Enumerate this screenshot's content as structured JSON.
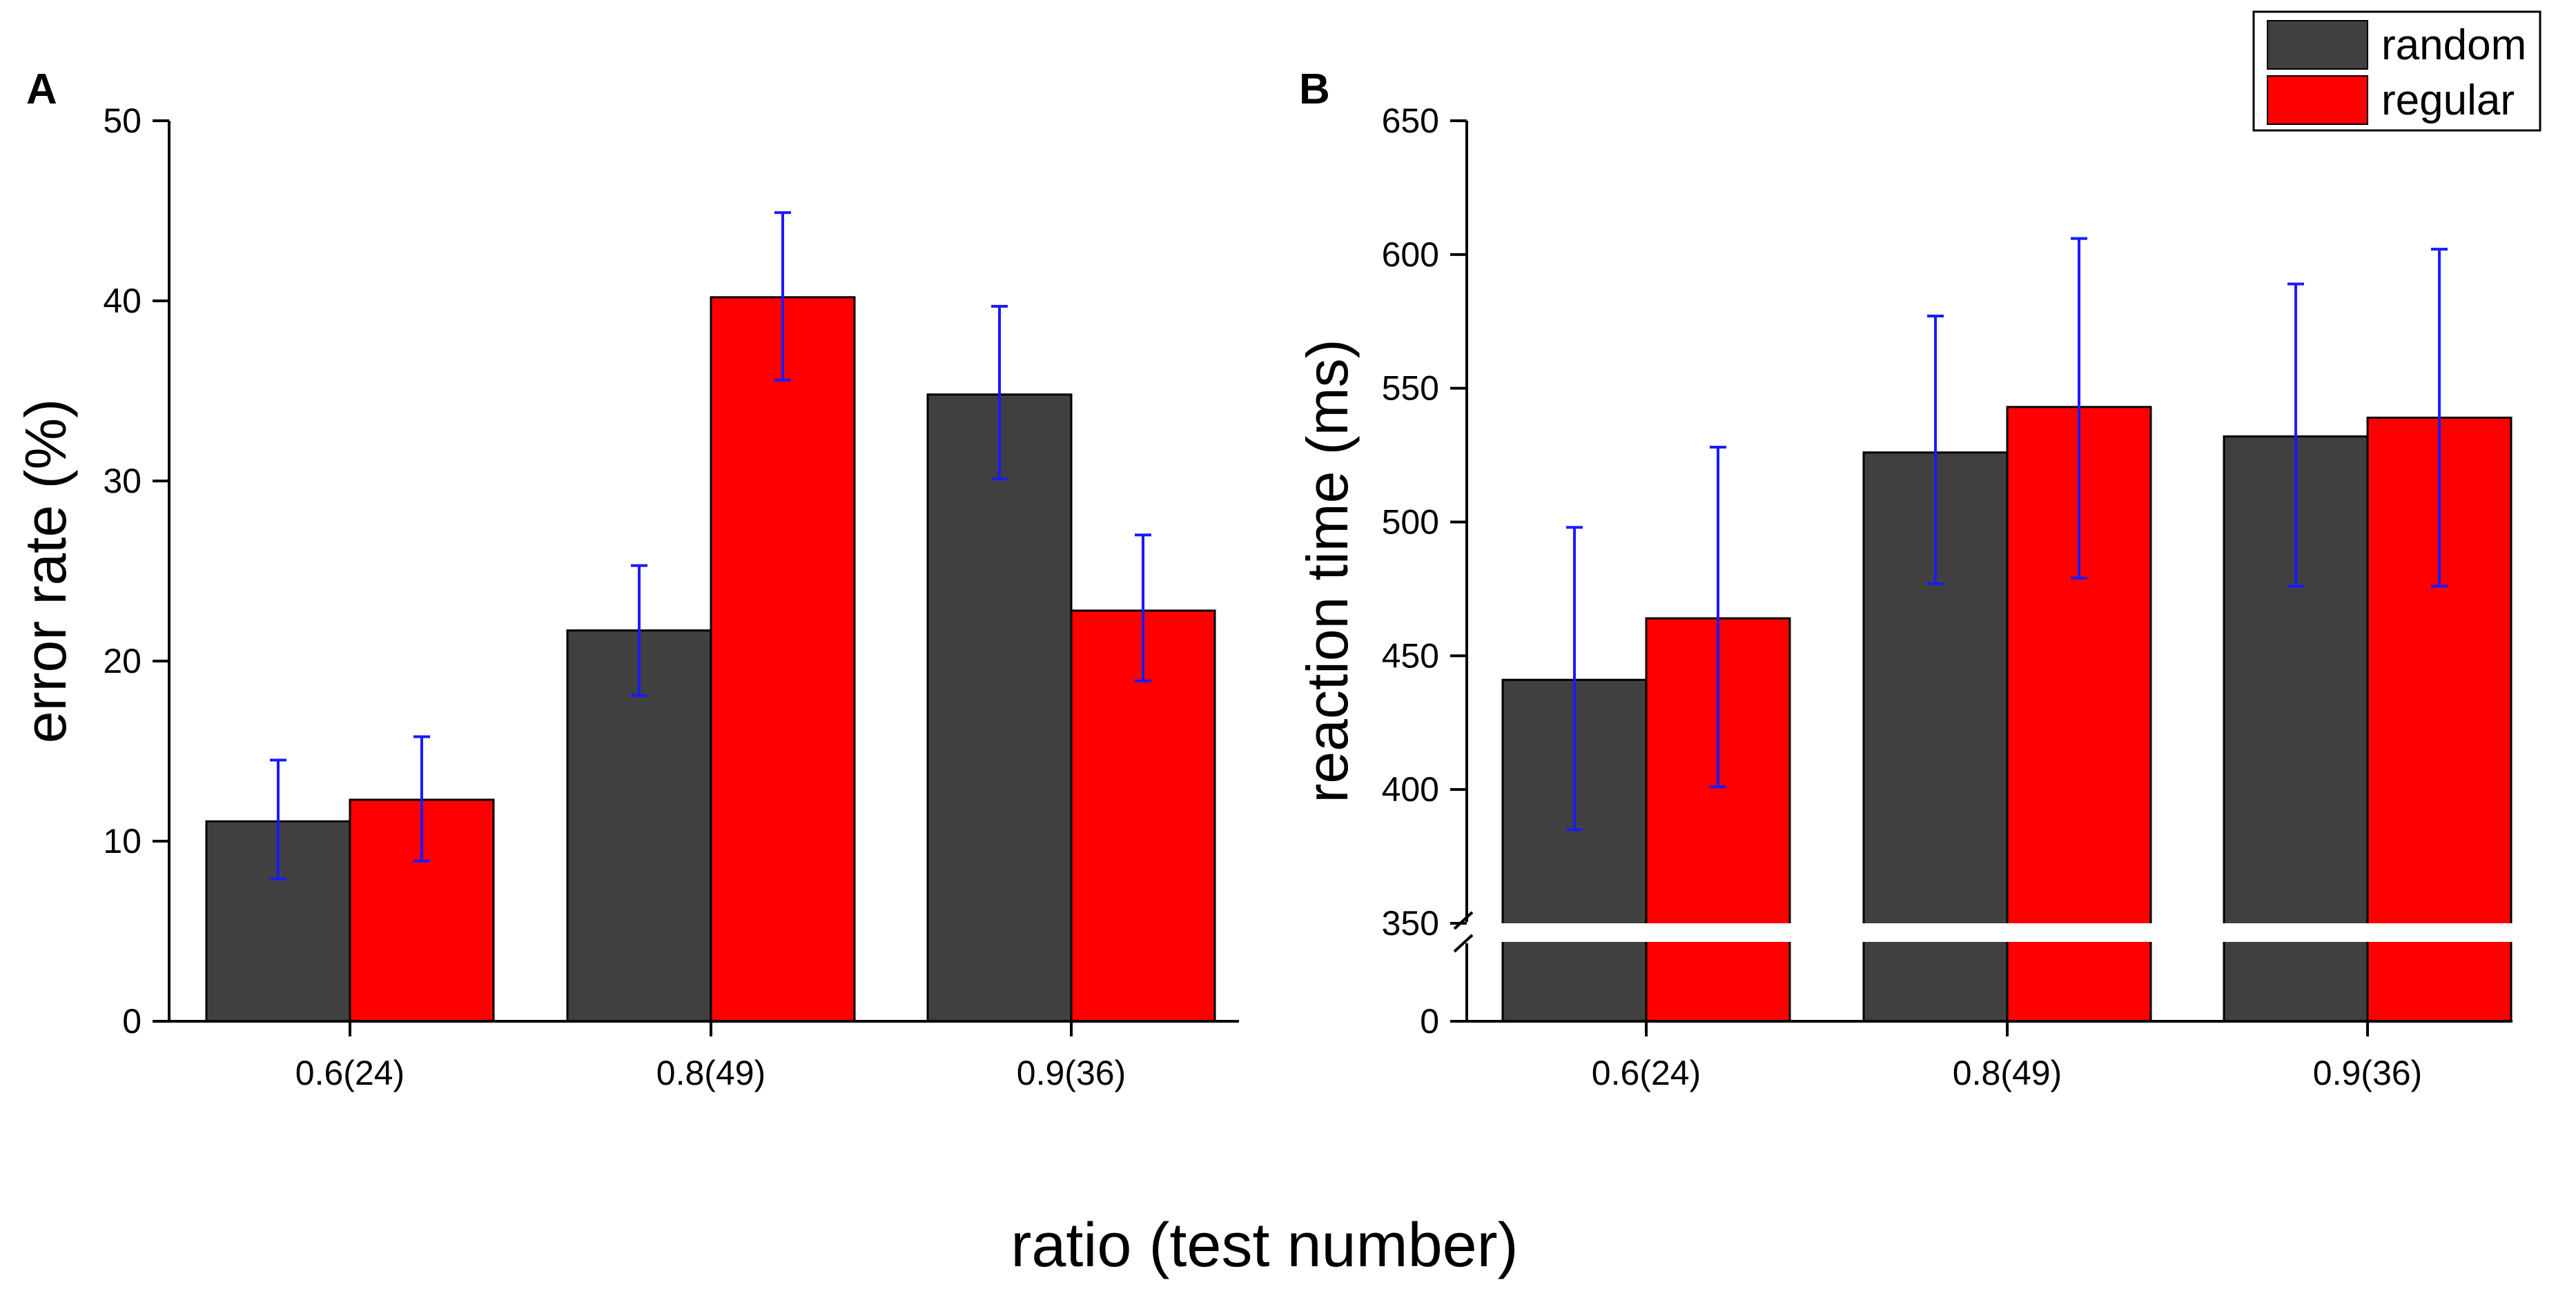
{
  "figure": {
    "shared_xlabel": "ratio (test number)",
    "colors": {
      "random": "#404040",
      "regular": "#ff0000",
      "error_bar": "#1a1aff"
    },
    "legend": {
      "placement": "top-right",
      "entries": [
        "random",
        "regular"
      ]
    }
  },
  "chart_data": [
    {
      "panel": "A",
      "type": "bar",
      "title": "",
      "xlabel": "",
      "ylabel": "error rate (%)",
      "categories": [
        "0.6(24)",
        "0.8(49)",
        "0.9(36)"
      ],
      "ylim": [
        0,
        50
      ],
      "yticks": [
        0,
        10,
        20,
        30,
        40,
        50
      ],
      "series": [
        {
          "name": "random",
          "values": [
            11.1,
            21.7,
            34.8
          ],
          "err_low": [
            7.9,
            18.1,
            30.1
          ],
          "err_high": [
            14.5,
            25.3,
            39.7
          ]
        },
        {
          "name": "regular",
          "values": [
            12.3,
            40.2,
            22.8
          ],
          "err_low": [
            8.9,
            35.6,
            18.9
          ],
          "err_high": [
            15.8,
            44.9,
            27.0
          ]
        }
      ]
    },
    {
      "panel": "B",
      "type": "bar",
      "title": "",
      "xlabel": "",
      "ylabel": "reaction time (ms)",
      "categories": [
        "0.6(24)",
        "0.8(49)",
        "0.9(36)"
      ],
      "ylim": [
        0,
        650
      ],
      "axis_break": [
        0,
        350
      ],
      "yticks": [
        0,
        350,
        400,
        450,
        500,
        550,
        600,
        650
      ],
      "series": [
        {
          "name": "random",
          "values": [
            441,
            526,
            532
          ],
          "err_low": [
            385,
            477,
            476
          ],
          "err_high": [
            498,
            577,
            589
          ]
        },
        {
          "name": "regular",
          "values": [
            464,
            543,
            539
          ],
          "err_low": [
            401,
            479,
            476
          ],
          "err_high": [
            528,
            606,
            602
          ]
        }
      ]
    }
  ]
}
